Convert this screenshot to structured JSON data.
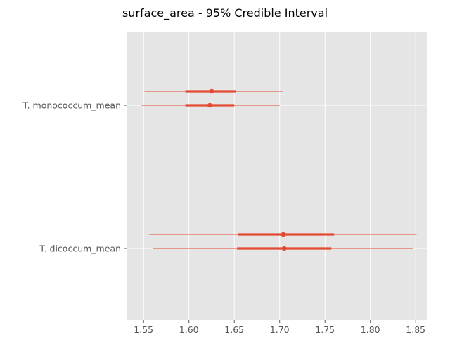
{
  "chart_data": {
    "type": "forest",
    "title": "surface_area - 95% Credible Interval",
    "xlabel": "",
    "ylabel": "",
    "xlim": [
      1.532,
      1.863
    ],
    "x_ticks": [
      1.55,
      1.6,
      1.65,
      1.7,
      1.75,
      1.8,
      1.85
    ],
    "x_tick_labels": [
      "1.55",
      "1.60",
      "1.65",
      "1.70",
      "1.75",
      "1.80",
      "1.85"
    ],
    "grid": true,
    "categories": [
      "T. monococcum_mean",
      "T. dicoccum_mean"
    ],
    "chains": [
      {
        "category": "T. monococcum_mean",
        "intervals": [
          {
            "chain": 1,
            "hdi95": [
              1.551,
              1.703
            ],
            "hdi50": [
              1.596,
              1.652
            ],
            "mean": 1.625
          },
          {
            "chain": 2,
            "hdi95": [
              1.548,
              1.7
            ],
            "hdi50": [
              1.596,
              1.65
            ],
            "mean": 1.623
          }
        ]
      },
      {
        "category": "T. dicoccum_mean",
        "intervals": [
          {
            "chain": 1,
            "hdi95": [
              1.556,
              1.851
            ],
            "hdi50": [
              1.654,
              1.76
            ],
            "mean": 1.704
          },
          {
            "chain": 2,
            "hdi95": [
              1.56,
              1.847
            ],
            "hdi50": [
              1.653,
              1.757
            ],
            "mean": 1.705
          }
        ]
      }
    ],
    "colors": {
      "line": "#E24A33",
      "background": "#E5E5E5",
      "grid": "#FFFFFF"
    }
  }
}
